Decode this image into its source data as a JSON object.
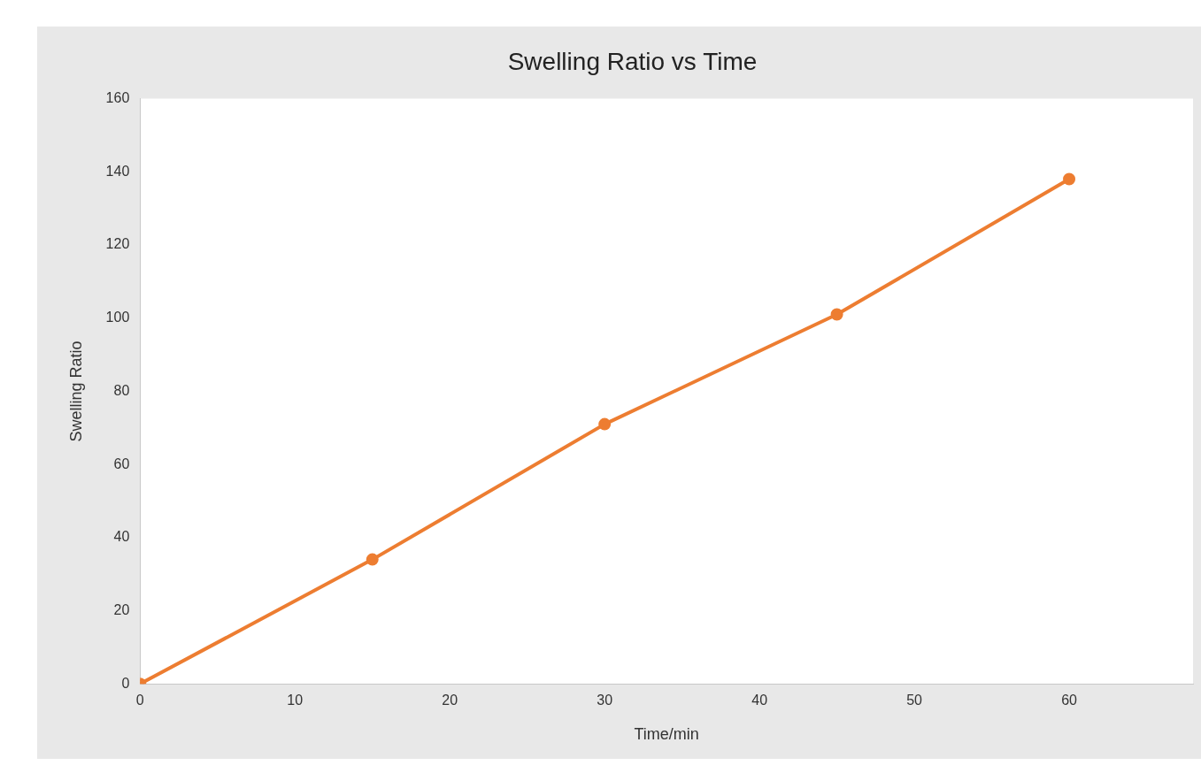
{
  "chart_data": {
    "type": "line",
    "title": "Swelling Ratio vs Time",
    "xlabel": "Time/min",
    "ylabel": "Swelling Ratio",
    "x": [
      0,
      15,
      30,
      45,
      60
    ],
    "series": [
      {
        "color": "#ed7d31",
        "values": [
          0,
          34,
          71,
          101,
          138
        ]
      }
    ],
    "xlim": [
      0,
      68
    ],
    "xticks": [
      0,
      10,
      20,
      30,
      40,
      50,
      60
    ],
    "ylim": [
      0,
      160
    ],
    "yticks": [
      0,
      20,
      40,
      60,
      80,
      100,
      120,
      140,
      160
    ],
    "grid": false,
    "legend": false,
    "marker": "circle",
    "line_style": "solid"
  }
}
